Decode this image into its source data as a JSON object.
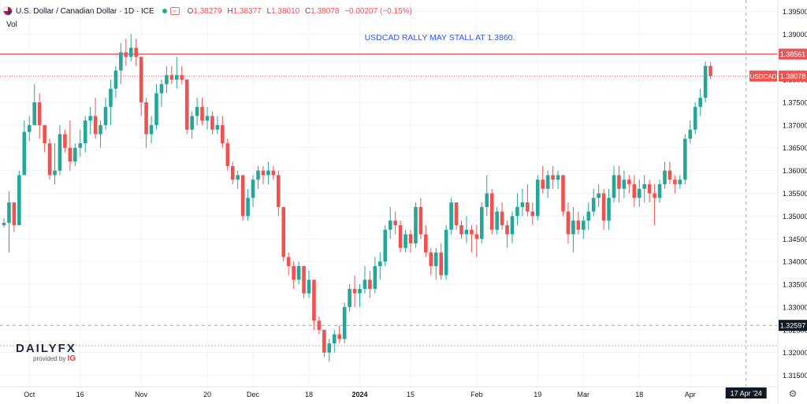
{
  "header": {
    "symbol": "U.S. Dollar / Canadian Dollar · 1D · ICE",
    "ohlc": [
      {
        "key": "O",
        "value": "1.38279"
      },
      {
        "key": "H",
        "value": "1.38377"
      },
      {
        "key": "L",
        "value": "1.38010"
      },
      {
        "key": "C",
        "value": "1.38078"
      }
    ],
    "change": "−0.00207 (−0.15%)",
    "vol_label": "Vol",
    "icons": [
      "us-flag-icon",
      "market-status-dot-icon",
      "compare-icon"
    ]
  },
  "colors": {
    "up": "#26a69a",
    "down": "#ef5350",
    "resistance": "#e05b5b",
    "annotation": "#3355ee"
  },
  "logo": {
    "brand_main": "DAILY",
    "brand_fx": "FX",
    "provided_by": "provided by",
    "provider": "IG"
  },
  "chart_data": {
    "type": "candlestick",
    "title": "USDCAD RALLY MAY STALL AT 1.3860.",
    "ylim": [
      1.3125,
      1.3975
    ],
    "y_ticks": [
      "1.39500",
      "1.39000",
      "1.38500",
      "1.38000",
      "1.37500",
      "1.37000",
      "1.36500",
      "1.36000",
      "1.35500",
      "1.35000",
      "1.34500",
      "1.34000",
      "1.33500",
      "1.33000",
      "1.32500",
      "1.32000",
      "1.31500"
    ],
    "x_labels": [
      {
        "label": "Oct",
        "index": 5,
        "bold": false
      },
      {
        "label": "16",
        "index": 15,
        "bold": false
      },
      {
        "label": "Nov",
        "index": 27,
        "bold": false
      },
      {
        "label": "20",
        "index": 40,
        "bold": false
      },
      {
        "label": "Dec",
        "index": 49,
        "bold": false
      },
      {
        "label": "18",
        "index": 60,
        "bold": false
      },
      {
        "label": "2024",
        "index": 70,
        "bold": true
      },
      {
        "label": "15",
        "index": 80,
        "bold": false
      },
      {
        "label": "Feb",
        "index": 93,
        "bold": false
      },
      {
        "label": "19",
        "index": 105,
        "bold": false
      },
      {
        "label": "Mar",
        "index": 114,
        "bold": false
      },
      {
        "label": "18",
        "index": 125,
        "bold": false
      },
      {
        "label": "Apr",
        "index": 135,
        "bold": false
      }
    ],
    "crosshair": {
      "date": "17 Apr '24",
      "index": 146,
      "price": "1.32597",
      "value": 1.32597
    },
    "lines": [
      {
        "name": "resistance",
        "value": 1.38561,
        "label": "1.38561",
        "style": "solid",
        "color": "#e05b5b"
      },
      {
        "name": "last-price",
        "value": 1.38078,
        "label": "1.38078",
        "symbol": "USDCAD",
        "style": "dotted",
        "color": "#ef5350"
      },
      {
        "name": "dashed-support",
        "value": 1.3215,
        "style": "dashed",
        "color": "#ef9a9a"
      }
    ],
    "candles": [
      [
        1.348,
        1.3495,
        1.3475,
        1.3485
      ],
      [
        1.3485,
        1.3555,
        1.342,
        1.353
      ],
      [
        1.353,
        1.353,
        1.3465,
        1.348
      ],
      [
        1.348,
        1.36,
        1.348,
        1.359
      ],
      [
        1.359,
        1.371,
        1.359,
        1.3685
      ],
      [
        1.3685,
        1.372,
        1.3665,
        1.37
      ],
      [
        1.37,
        1.379,
        1.37,
        1.375
      ],
      [
        1.375,
        1.377,
        1.367,
        1.37
      ],
      [
        1.37,
        1.37,
        1.364,
        1.366
      ],
      [
        1.366,
        1.367,
        1.358,
        1.359
      ],
      [
        1.359,
        1.366,
        1.357,
        1.36
      ],
      [
        1.36,
        1.37,
        1.359,
        1.368
      ],
      [
        1.368,
        1.369,
        1.364,
        1.365
      ],
      [
        1.365,
        1.371,
        1.36,
        1.362
      ],
      [
        1.362,
        1.366,
        1.361,
        1.365
      ],
      [
        1.365,
        1.369,
        1.363,
        1.366
      ],
      [
        1.366,
        1.372,
        1.364,
        1.371
      ],
      [
        1.371,
        1.374,
        1.368,
        1.372
      ],
      [
        1.372,
        1.376,
        1.367,
        1.368
      ],
      [
        1.368,
        1.371,
        1.365,
        1.37
      ],
      [
        1.37,
        1.376,
        1.369,
        1.374
      ],
      [
        1.374,
        1.38,
        1.37,
        1.378
      ],
      [
        1.378,
        1.383,
        1.376,
        1.382
      ],
      [
        1.382,
        1.388,
        1.379,
        1.386
      ],
      [
        1.386,
        1.389,
        1.383,
        1.385
      ],
      [
        1.385,
        1.39,
        1.384,
        1.387
      ],
      [
        1.387,
        1.389,
        1.383,
        1.385
      ],
      [
        1.385,
        1.385,
        1.372,
        1.375
      ],
      [
        1.375,
        1.376,
        1.365,
        1.368
      ],
      [
        1.368,
        1.372,
        1.366,
        1.37
      ],
      [
        1.37,
        1.379,
        1.369,
        1.377
      ],
      [
        1.377,
        1.38,
        1.374,
        1.379
      ],
      [
        1.379,
        1.383,
        1.377,
        1.381
      ],
      [
        1.381,
        1.383,
        1.379,
        1.38
      ],
      [
        1.38,
        1.385,
        1.378,
        1.381
      ],
      [
        1.381,
        1.383,
        1.379,
        1.38
      ],
      [
        1.38,
        1.38,
        1.368,
        1.369
      ],
      [
        1.369,
        1.373,
        1.367,
        1.372
      ],
      [
        1.372,
        1.376,
        1.37,
        1.374
      ],
      [
        1.374,
        1.376,
        1.37,
        1.371
      ],
      [
        1.371,
        1.374,
        1.369,
        1.372
      ],
      [
        1.372,
        1.373,
        1.368,
        1.369
      ],
      [
        1.369,
        1.372,
        1.368,
        1.37
      ],
      [
        1.37,
        1.372,
        1.365,
        1.366
      ],
      [
        1.366,
        1.367,
        1.36,
        1.361
      ],
      [
        1.361,
        1.362,
        1.357,
        1.358
      ],
      [
        1.358,
        1.36,
        1.356,
        1.359
      ],
      [
        1.359,
        1.359,
        1.349,
        1.35
      ],
      [
        1.35,
        1.356,
        1.349,
        1.354
      ],
      [
        1.354,
        1.359,
        1.352,
        1.358
      ],
      [
        1.358,
        1.361,
        1.356,
        1.36
      ],
      [
        1.36,
        1.361,
        1.357,
        1.359
      ],
      [
        1.359,
        1.362,
        1.357,
        1.36
      ],
      [
        1.36,
        1.361,
        1.358,
        1.359
      ],
      [
        1.359,
        1.36,
        1.35,
        1.352
      ],
      [
        1.352,
        1.352,
        1.34,
        1.341
      ],
      [
        1.341,
        1.342,
        1.337,
        1.339
      ],
      [
        1.339,
        1.34,
        1.334,
        1.336
      ],
      [
        1.336,
        1.34,
        1.335,
        1.339
      ],
      [
        1.339,
        1.339,
        1.332,
        1.333
      ],
      [
        1.333,
        1.338,
        1.332,
        1.336
      ],
      [
        1.336,
        1.336,
        1.325,
        1.327
      ],
      [
        1.327,
        1.328,
        1.324,
        1.325
      ],
      [
        1.325,
        1.325,
        1.319,
        1.32
      ],
      [
        1.32,
        1.323,
        1.318,
        1.322
      ],
      [
        1.322,
        1.325,
        1.32,
        1.324
      ],
      [
        1.324,
        1.326,
        1.322,
        1.323
      ],
      [
        1.323,
        1.331,
        1.322,
        1.33
      ],
      [
        1.33,
        1.335,
        1.329,
        1.334
      ],
      [
        1.334,
        1.337,
        1.33,
        1.333
      ],
      [
        1.333,
        1.335,
        1.33,
        1.334
      ],
      [
        1.334,
        1.339,
        1.333,
        1.336
      ],
      [
        1.336,
        1.338,
        1.332,
        1.334
      ],
      [
        1.334,
        1.341,
        1.333,
        1.339
      ],
      [
        1.339,
        1.342,
        1.336,
        1.34
      ],
      [
        1.34,
        1.348,
        1.339,
        1.347
      ],
      [
        1.347,
        1.352,
        1.345,
        1.349
      ],
      [
        1.349,
        1.351,
        1.346,
        1.348
      ],
      [
        1.348,
        1.349,
        1.342,
        1.343
      ],
      [
        1.343,
        1.347,
        1.342,
        1.346
      ],
      [
        1.346,
        1.347,
        1.342,
        1.344
      ],
      [
        1.344,
        1.353,
        1.343,
        1.352
      ],
      [
        1.352,
        1.354,
        1.345,
        1.346
      ],
      [
        1.346,
        1.348,
        1.341,
        1.342
      ],
      [
        1.342,
        1.343,
        1.337,
        1.339
      ],
      [
        1.339,
        1.343,
        1.336,
        1.342
      ],
      [
        1.342,
        1.344,
        1.336,
        1.337
      ],
      [
        1.337,
        1.348,
        1.336,
        1.347
      ],
      [
        1.347,
        1.354,
        1.346,
        1.353
      ],
      [
        1.353,
        1.353,
        1.347,
        1.348
      ],
      [
        1.348,
        1.349,
        1.345,
        1.346
      ],
      [
        1.346,
        1.35,
        1.344,
        1.347
      ],
      [
        1.347,
        1.348,
        1.342,
        1.346
      ],
      [
        1.346,
        1.348,
        1.341,
        1.345
      ],
      [
        1.345,
        1.353,
        1.344,
        1.352
      ],
      [
        1.352,
        1.359,
        1.35,
        1.355
      ],
      [
        1.355,
        1.356,
        1.346,
        1.347
      ],
      [
        1.347,
        1.352,
        1.346,
        1.351
      ],
      [
        1.351,
        1.353,
        1.347,
        1.348
      ],
      [
        1.348,
        1.349,
        1.343,
        1.346
      ],
      [
        1.346,
        1.351,
        1.344,
        1.35
      ],
      [
        1.35,
        1.355,
        1.348,
        1.352
      ],
      [
        1.352,
        1.356,
        1.35,
        1.353
      ],
      [
        1.353,
        1.357,
        1.35,
        1.351
      ],
      [
        1.351,
        1.353,
        1.348,
        1.35
      ],
      [
        1.35,
        1.359,
        1.349,
        1.358
      ],
      [
        1.358,
        1.361,
        1.355,
        1.356
      ],
      [
        1.356,
        1.36,
        1.354,
        1.359
      ],
      [
        1.359,
        1.361,
        1.356,
        1.358
      ],
      [
        1.358,
        1.36,
        1.356,
        1.359
      ],
      [
        1.359,
        1.359,
        1.35,
        1.351
      ],
      [
        1.351,
        1.353,
        1.344,
        1.346
      ],
      [
        1.346,
        1.352,
        1.342,
        1.349
      ],
      [
        1.349,
        1.351,
        1.346,
        1.347
      ],
      [
        1.347,
        1.35,
        1.345,
        1.349
      ],
      [
        1.349,
        1.353,
        1.347,
        1.351
      ],
      [
        1.351,
        1.356,
        1.35,
        1.354
      ],
      [
        1.354,
        1.357,
        1.352,
        1.355
      ],
      [
        1.355,
        1.356,
        1.347,
        1.349
      ],
      [
        1.349,
        1.356,
        1.347,
        1.354
      ],
      [
        1.354,
        1.361,
        1.353,
        1.359
      ],
      [
        1.359,
        1.361,
        1.353,
        1.356
      ],
      [
        1.356,
        1.36,
        1.354,
        1.358
      ],
      [
        1.358,
        1.359,
        1.355,
        1.357
      ],
      [
        1.357,
        1.359,
        1.352,
        1.354
      ],
      [
        1.354,
        1.358,
        1.352,
        1.356
      ],
      [
        1.356,
        1.359,
        1.353,
        1.357
      ],
      [
        1.357,
        1.358,
        1.353,
        1.355
      ],
      [
        1.355,
        1.357,
        1.348,
        1.354
      ],
      [
        1.354,
        1.358,
        1.353,
        1.357
      ],
      [
        1.357,
        1.362,
        1.356,
        1.36
      ],
      [
        1.36,
        1.362,
        1.357,
        1.358
      ],
      [
        1.358,
        1.359,
        1.355,
        1.357
      ],
      [
        1.357,
        1.359,
        1.356,
        1.358
      ],
      [
        1.358,
        1.368,
        1.357,
        1.367
      ],
      [
        1.367,
        1.371,
        1.366,
        1.369
      ],
      [
        1.369,
        1.375,
        1.368,
        1.374
      ],
      [
        1.374,
        1.378,
        1.372,
        1.376
      ],
      [
        1.376,
        1.384,
        1.375,
        1.383
      ],
      [
        1.383,
        1.3838,
        1.3801,
        1.3808
      ]
    ]
  }
}
